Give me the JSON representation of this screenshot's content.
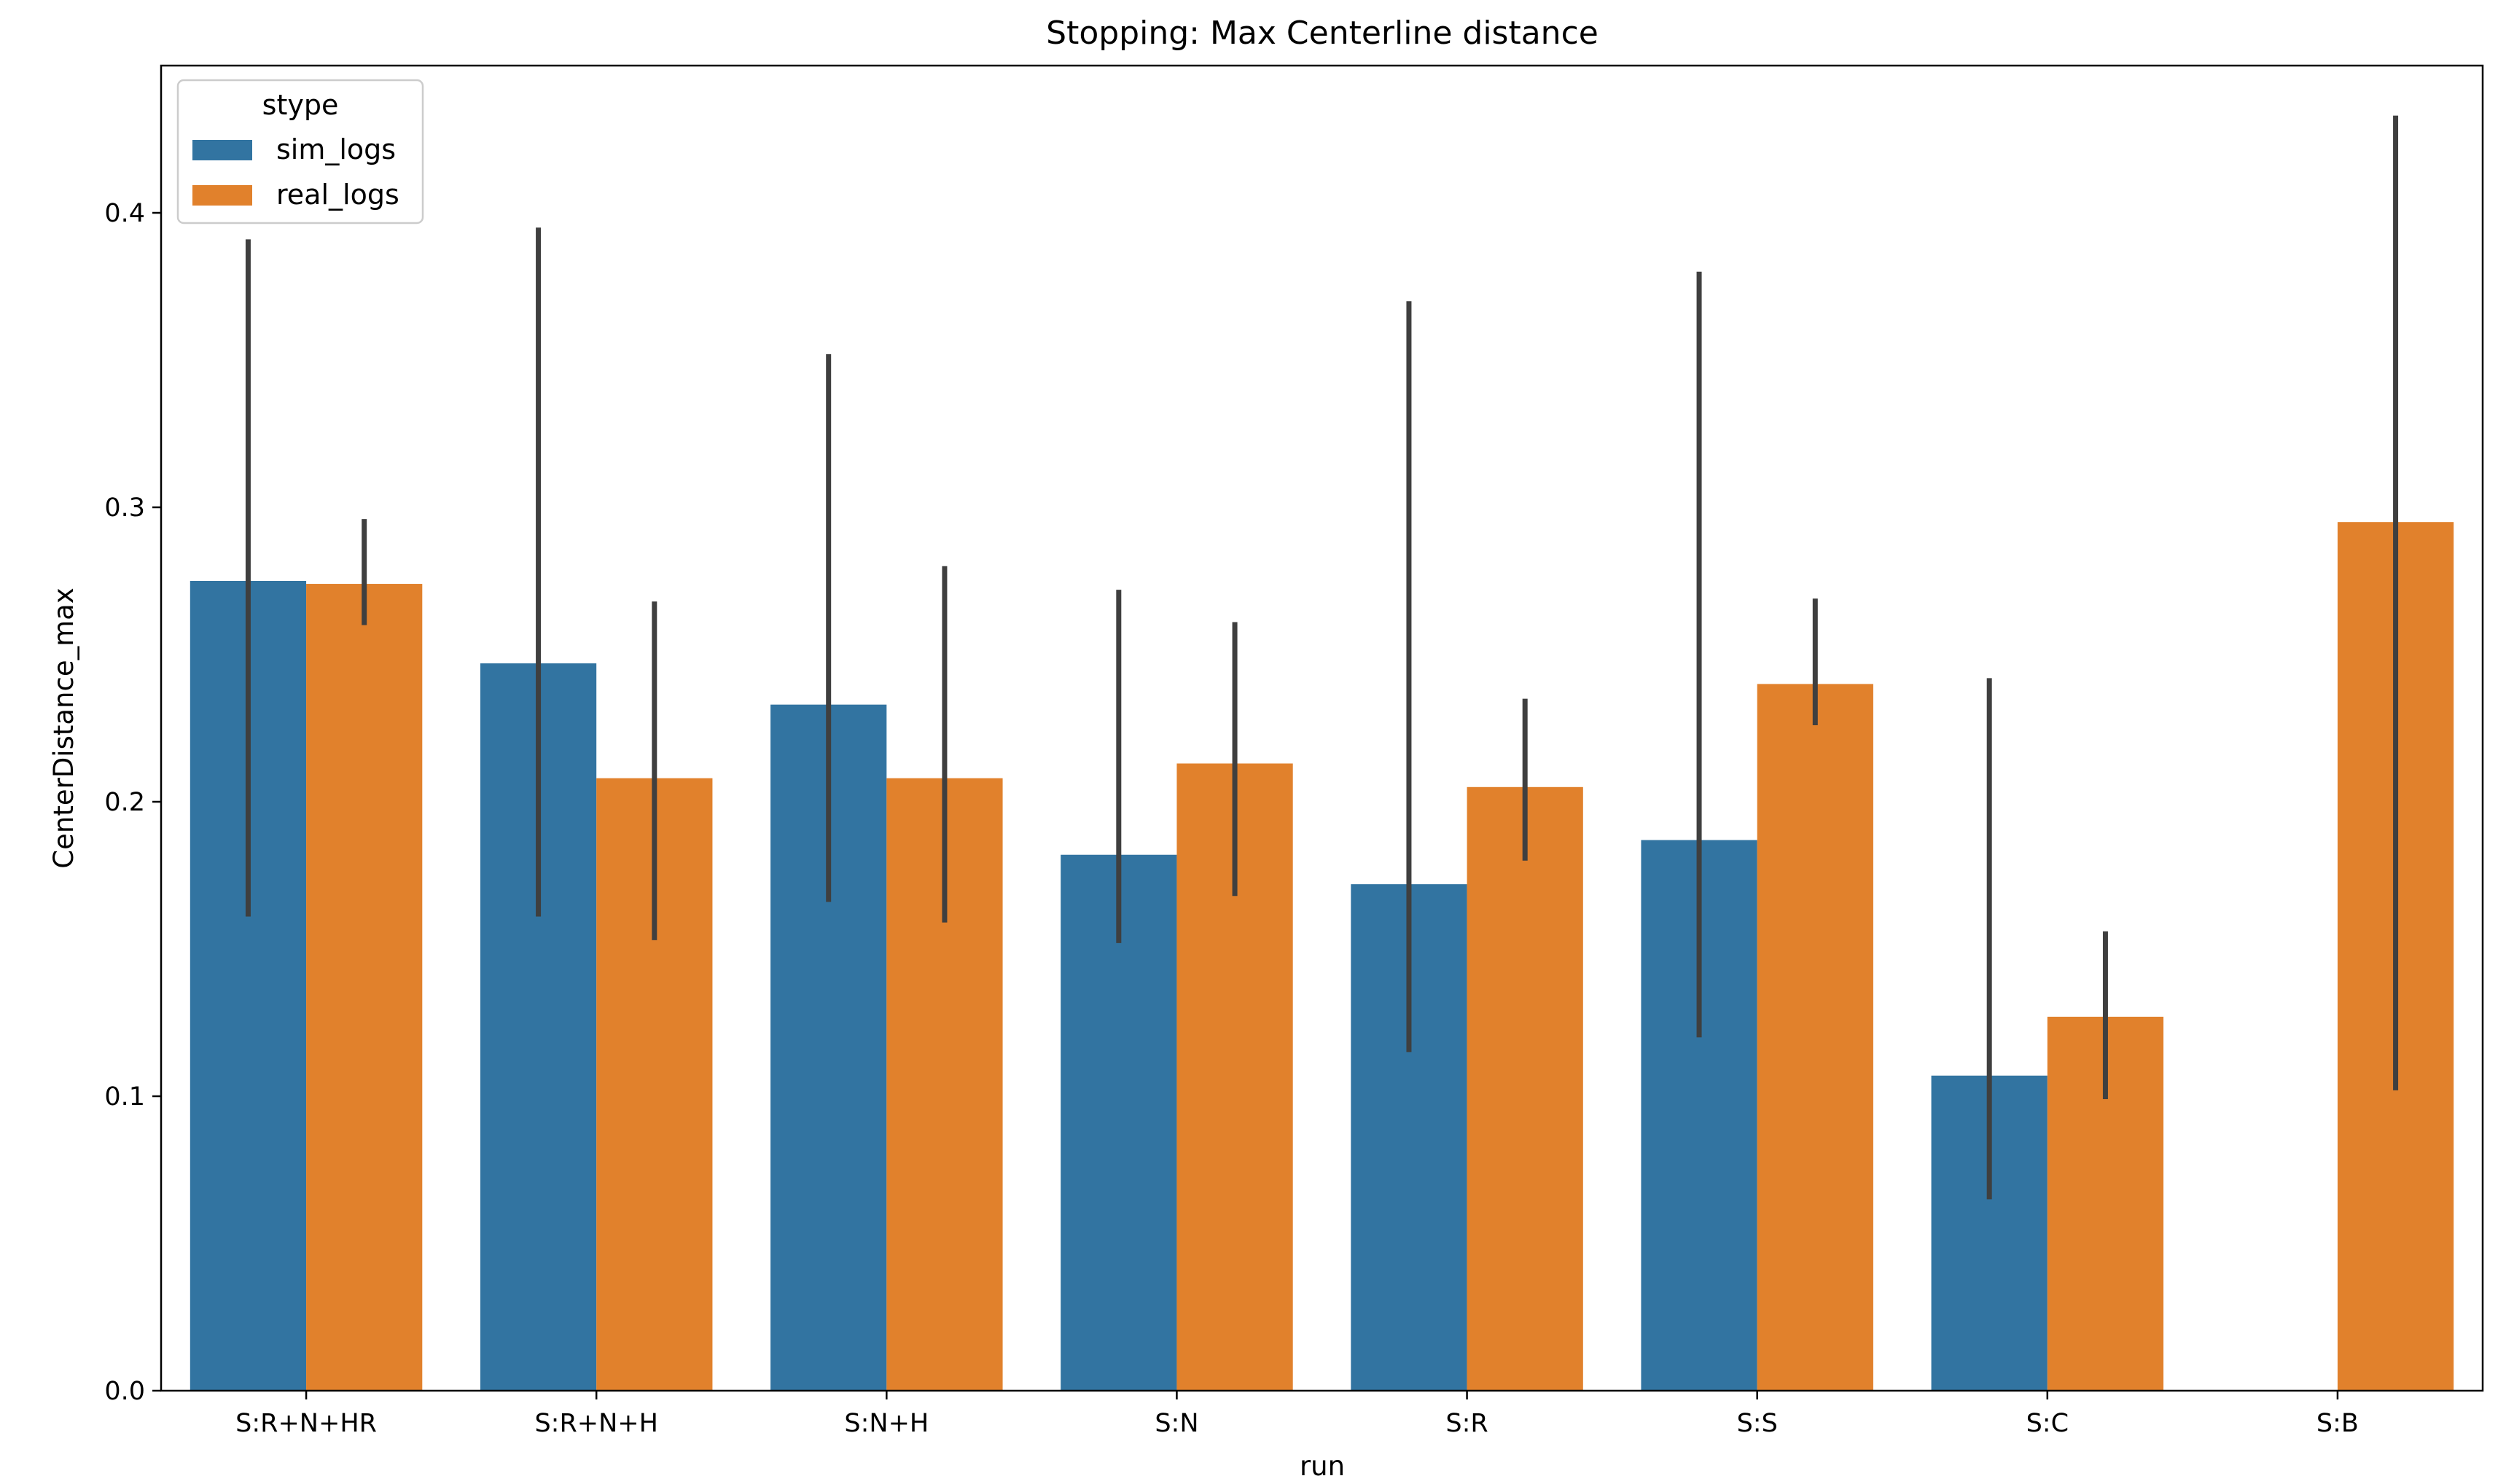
{
  "chart_data": {
    "type": "bar",
    "title": "Stopping: Max Centerline distance",
    "xlabel": "run",
    "ylabel": "CenterDistance_max",
    "categories": [
      "S:R+N+HR",
      "S:R+N+H",
      "S:N+H",
      "S:N",
      "S:R",
      "S:S",
      "S:C",
      "S:B"
    ],
    "ylim": [
      0,
      0.45
    ],
    "yticks": [
      "0.0",
      "0.1",
      "0.2",
      "0.3",
      "0.4"
    ],
    "grid": false,
    "legend": {
      "title": "stype",
      "placement": "top-left"
    },
    "series": [
      {
        "name": "sim_logs",
        "color": "#3274a1",
        "values": [
          0.275,
          0.247,
          0.233,
          0.182,
          0.172,
          0.187,
          0.107,
          null
        ],
        "error_low": [
          0.161,
          0.161,
          0.166,
          0.152,
          0.115,
          0.12,
          0.065,
          null
        ],
        "error_high": [
          0.391,
          0.395,
          0.352,
          0.272,
          0.37,
          0.38,
          0.242,
          null
        ]
      },
      {
        "name": "real_logs",
        "color": "#e1812c",
        "values": [
          0.274,
          0.208,
          0.208,
          0.213,
          0.205,
          0.24,
          0.127,
          0.295
        ],
        "error_low": [
          0.26,
          0.153,
          0.159,
          0.168,
          0.18,
          0.226,
          0.099,
          0.102
        ],
        "error_high": [
          0.296,
          0.268,
          0.28,
          0.261,
          0.235,
          0.269,
          0.156,
          0.433
        ]
      }
    ],
    "errorbar_color": "#3f3f3f"
  }
}
